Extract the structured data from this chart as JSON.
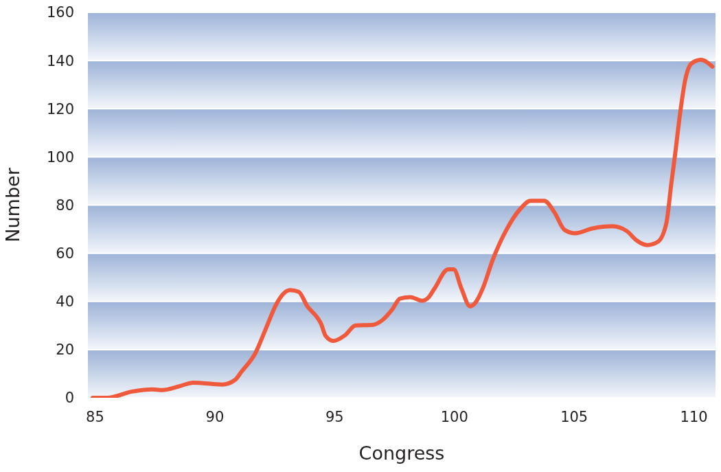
{
  "chart_data": {
    "type": "line",
    "xlabel": "Congress",
    "ylabel": "Number",
    "xlim": [
      84.7,
      110.9
    ],
    "xticks": [
      85,
      90,
      95,
      100,
      105,
      110
    ],
    "ylim": [
      0,
      160
    ],
    "yticks": [
      0,
      20,
      40,
      60,
      80,
      100,
      120,
      140,
      160
    ],
    "grid": "y",
    "marker": "none",
    "line_style": "solid",
    "series": [
      {
        "color": "#ef5a3c",
        "x": [
          84.9,
          85.5,
          86.55,
          87.4,
          87.8,
          88.55,
          89.1,
          90.3,
          90.85,
          91.1,
          91.7,
          92.1,
          92.6,
          92.86,
          93.14,
          93.5,
          93.86,
          94.3,
          94.43,
          94.63,
          94.95,
          95.44,
          95.87,
          96.6,
          97.0,
          97.4,
          97.73,
          98.16,
          98.65,
          98.93,
          99.16,
          99.74,
          99.97,
          100.3,
          100.65,
          100.88,
          101.2,
          101.6,
          102.17,
          102.75,
          103.18,
          103.75,
          104.18,
          104.6,
          105.04,
          105.76,
          106.6,
          107.2,
          107.6,
          108.05,
          108.5,
          108.85,
          109.05,
          109.2,
          109.43,
          109.63,
          109.91,
          110.29,
          110.77
        ],
        "values": [
          0,
          0,
          2.6,
          3.5,
          3.2,
          4.9,
          6.3,
          5.5,
          7.5,
          10.7,
          18.7,
          28,
          39.5,
          43.2,
          44.7,
          44,
          38,
          33,
          30.8,
          25.6,
          23.6,
          26,
          30,
          30.3,
          32.3,
          36.6,
          41.2,
          41.8,
          40.3,
          41.8,
          45.2,
          53.3,
          53.3,
          45.2,
          38,
          39.5,
          45.8,
          57.3,
          69.7,
          78.4,
          81.8,
          81.8,
          76.9,
          69.7,
          68.3,
          70.3,
          71.2,
          69.2,
          65.4,
          63.4,
          64.8,
          72.6,
          88.5,
          100,
          118.7,
          131.7,
          138.9,
          140.3,
          137.5
        ]
      }
    ]
  }
}
